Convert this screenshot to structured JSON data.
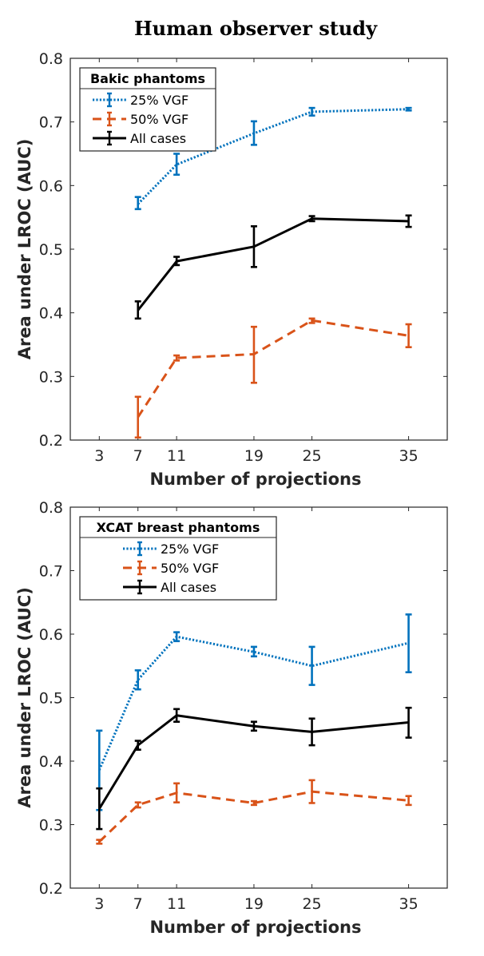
{
  "figure_title": "Human observer study",
  "chart_data": [
    {
      "type": "line",
      "panel": "top",
      "legend_title": "Bakic phantoms",
      "legend_position": "top-left",
      "xlabel": "Number of projections",
      "ylabel": "Area under LROC (AUC)",
      "xlim": [
        0,
        39
      ],
      "ylim": [
        0.2,
        0.8
      ],
      "xticks": [
        3,
        7,
        11,
        19,
        25,
        35
      ],
      "yticks": [
        0.2,
        0.3,
        0.4,
        0.5,
        0.6,
        0.7,
        0.8
      ],
      "series": [
        {
          "name": "25% VGF",
          "color": "#0072BD",
          "dash": "dotted",
          "x": [
            7,
            11,
            19,
            25,
            35
          ],
          "values": [
            0.571,
            0.633,
            0.682,
            0.716,
            0.72
          ],
          "err_low": [
            0.563,
            0.617,
            0.664,
            0.71,
            0.718
          ],
          "err_high": [
            0.582,
            0.65,
            0.701,
            0.722,
            0.722
          ]
        },
        {
          "name": "50% VGF",
          "color": "#D95319",
          "dash": "dashed",
          "x": [
            7,
            11,
            19,
            25,
            35
          ],
          "values": [
            0.236,
            0.329,
            0.335,
            0.388,
            0.364
          ],
          "err_low": [
            0.204,
            0.325,
            0.29,
            0.384,
            0.346
          ],
          "err_high": [
            0.268,
            0.333,
            0.378,
            0.391,
            0.382
          ]
        },
        {
          "name": "All cases",
          "color": "#000000",
          "dash": "solid",
          "x": [
            7,
            11,
            19,
            25,
            35
          ],
          "values": [
            0.404,
            0.481,
            0.504,
            0.548,
            0.544
          ],
          "err_low": [
            0.391,
            0.475,
            0.472,
            0.544,
            0.535
          ],
          "err_high": [
            0.418,
            0.488,
            0.536,
            0.552,
            0.553
          ]
        }
      ]
    },
    {
      "type": "line",
      "panel": "bottom",
      "legend_title": "XCAT breast phantoms",
      "legend_position": "top-left",
      "xlabel": "Number of projections",
      "ylabel": "Area under LROC (AUC)",
      "xlim": [
        0,
        39
      ],
      "ylim": [
        0.2,
        0.8
      ],
      "xticks": [
        3,
        7,
        11,
        19,
        25,
        35
      ],
      "yticks": [
        0.2,
        0.3,
        0.4,
        0.5,
        0.6,
        0.7,
        0.8
      ],
      "series": [
        {
          "name": "25% VGF",
          "color": "#0072BD",
          "dash": "dotted",
          "x": [
            3,
            7,
            11,
            19,
            25,
            35
          ],
          "values": [
            0.386,
            0.528,
            0.596,
            0.572,
            0.55,
            0.586
          ],
          "err_low": [
            0.323,
            0.513,
            0.589,
            0.565,
            0.52,
            0.54
          ],
          "err_high": [
            0.448,
            0.543,
            0.603,
            0.58,
            0.58,
            0.631
          ]
        },
        {
          "name": "50% VGF",
          "color": "#D95319",
          "dash": "dashed",
          "x": [
            3,
            7,
            11,
            19,
            25,
            35
          ],
          "values": [
            0.273,
            0.331,
            0.35,
            0.334,
            0.352,
            0.338
          ],
          "err_low": [
            0.27,
            0.327,
            0.335,
            0.331,
            0.334,
            0.331
          ],
          "err_high": [
            0.276,
            0.335,
            0.365,
            0.337,
            0.37,
            0.345
          ]
        },
        {
          "name": "All cases",
          "color": "#000000",
          "dash": "solid",
          "x": [
            3,
            7,
            11,
            19,
            25,
            35
          ],
          "values": [
            0.325,
            0.425,
            0.472,
            0.455,
            0.446,
            0.461
          ],
          "err_low": [
            0.293,
            0.418,
            0.462,
            0.448,
            0.425,
            0.437
          ],
          "err_high": [
            0.357,
            0.432,
            0.482,
            0.462,
            0.467,
            0.484
          ]
        }
      ]
    }
  ]
}
